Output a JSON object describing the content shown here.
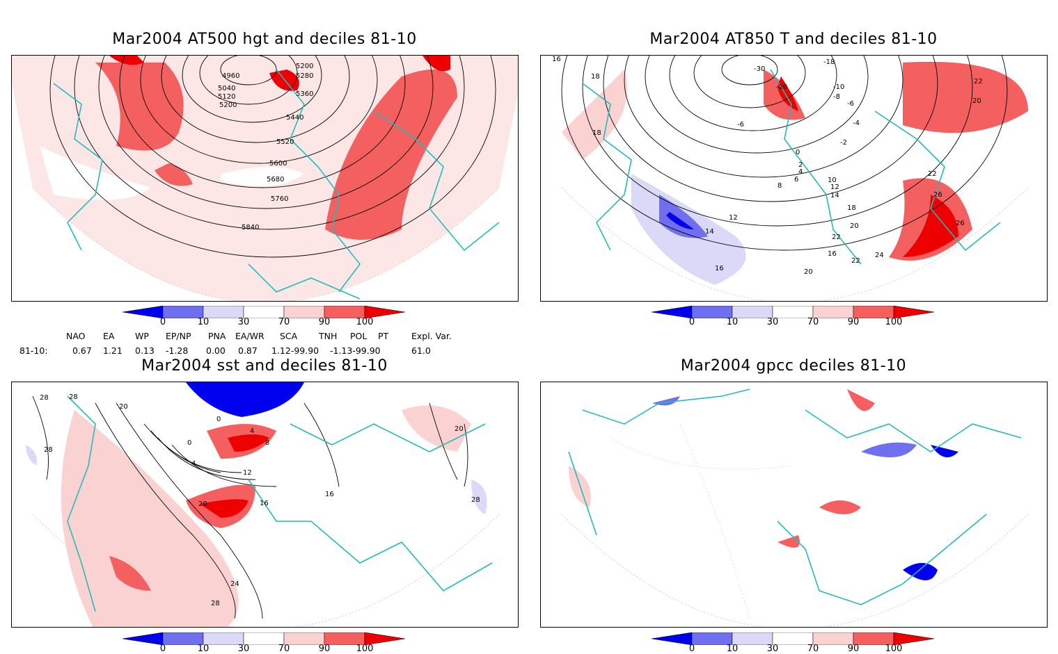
{
  "panels": [
    {
      "title": "Mar2004 AT500 hgt and deciles 81-10",
      "contour_labels": [
        "4960",
        "5040",
        "5120",
        "5200",
        "5200",
        "5280",
        "5360",
        "5440",
        "5520",
        "5600",
        "5680",
        "5760",
        "5840"
      ]
    },
    {
      "title": "Mar2004 AT850 T and deciles 81-10",
      "contour_labels": [
        "-30",
        "-18",
        "-20",
        "-10",
        "-8",
        "-6",
        "-6",
        "-4",
        "-2",
        "0",
        "2",
        "4",
        "6",
        "8",
        "10",
        "12",
        "12",
        "14",
        "14",
        "16",
        "16",
        "16",
        "18",
        "18",
        "18",
        "20",
        "20",
        "20",
        "22",
        "22",
        "22",
        "22",
        "24",
        "26",
        "26"
      ]
    },
    {
      "title": "Mar2004 sst and deciles 81-10",
      "contour_labels": [
        "28",
        "28",
        "28",
        "20",
        "0",
        "4",
        "8",
        "4",
        "0",
        "12",
        "16",
        "20",
        "24",
        "28",
        "16",
        "20",
        "28"
      ]
    },
    {
      "title": "Mar2004 gpcc deciles 81-10",
      "contour_labels": []
    }
  ],
  "colorbar": {
    "ticks": [
      "0",
      "10",
      "30",
      "70",
      "90",
      "100"
    ],
    "colors": {
      "deep_blue": "#0000ee",
      "mid_blue": "#6f6ff0",
      "light_blue": "#dadaf8",
      "white": "#ffffff",
      "light_red": "#fbd2d2",
      "mid_red": "#f46060",
      "deep_red": "#ee0000"
    }
  },
  "indices": {
    "headers": [
      "NAO",
      "EA",
      "WP",
      "EP/NP",
      "PNA",
      "EA/WR",
      "SCA",
      "TNH",
      "POL",
      "PT",
      "Expl. Var."
    ],
    "row_label": "81-10:",
    "values": [
      "0.67",
      "1.21",
      "0.13",
      "-1.28",
      "0.00",
      "0.87",
      "1.12-99.90",
      "-1.13-99.90",
      "61.0"
    ]
  },
  "colors": {
    "coast": "#22bbbb",
    "contour": "#000000",
    "grid": "#aaaaaa"
  }
}
